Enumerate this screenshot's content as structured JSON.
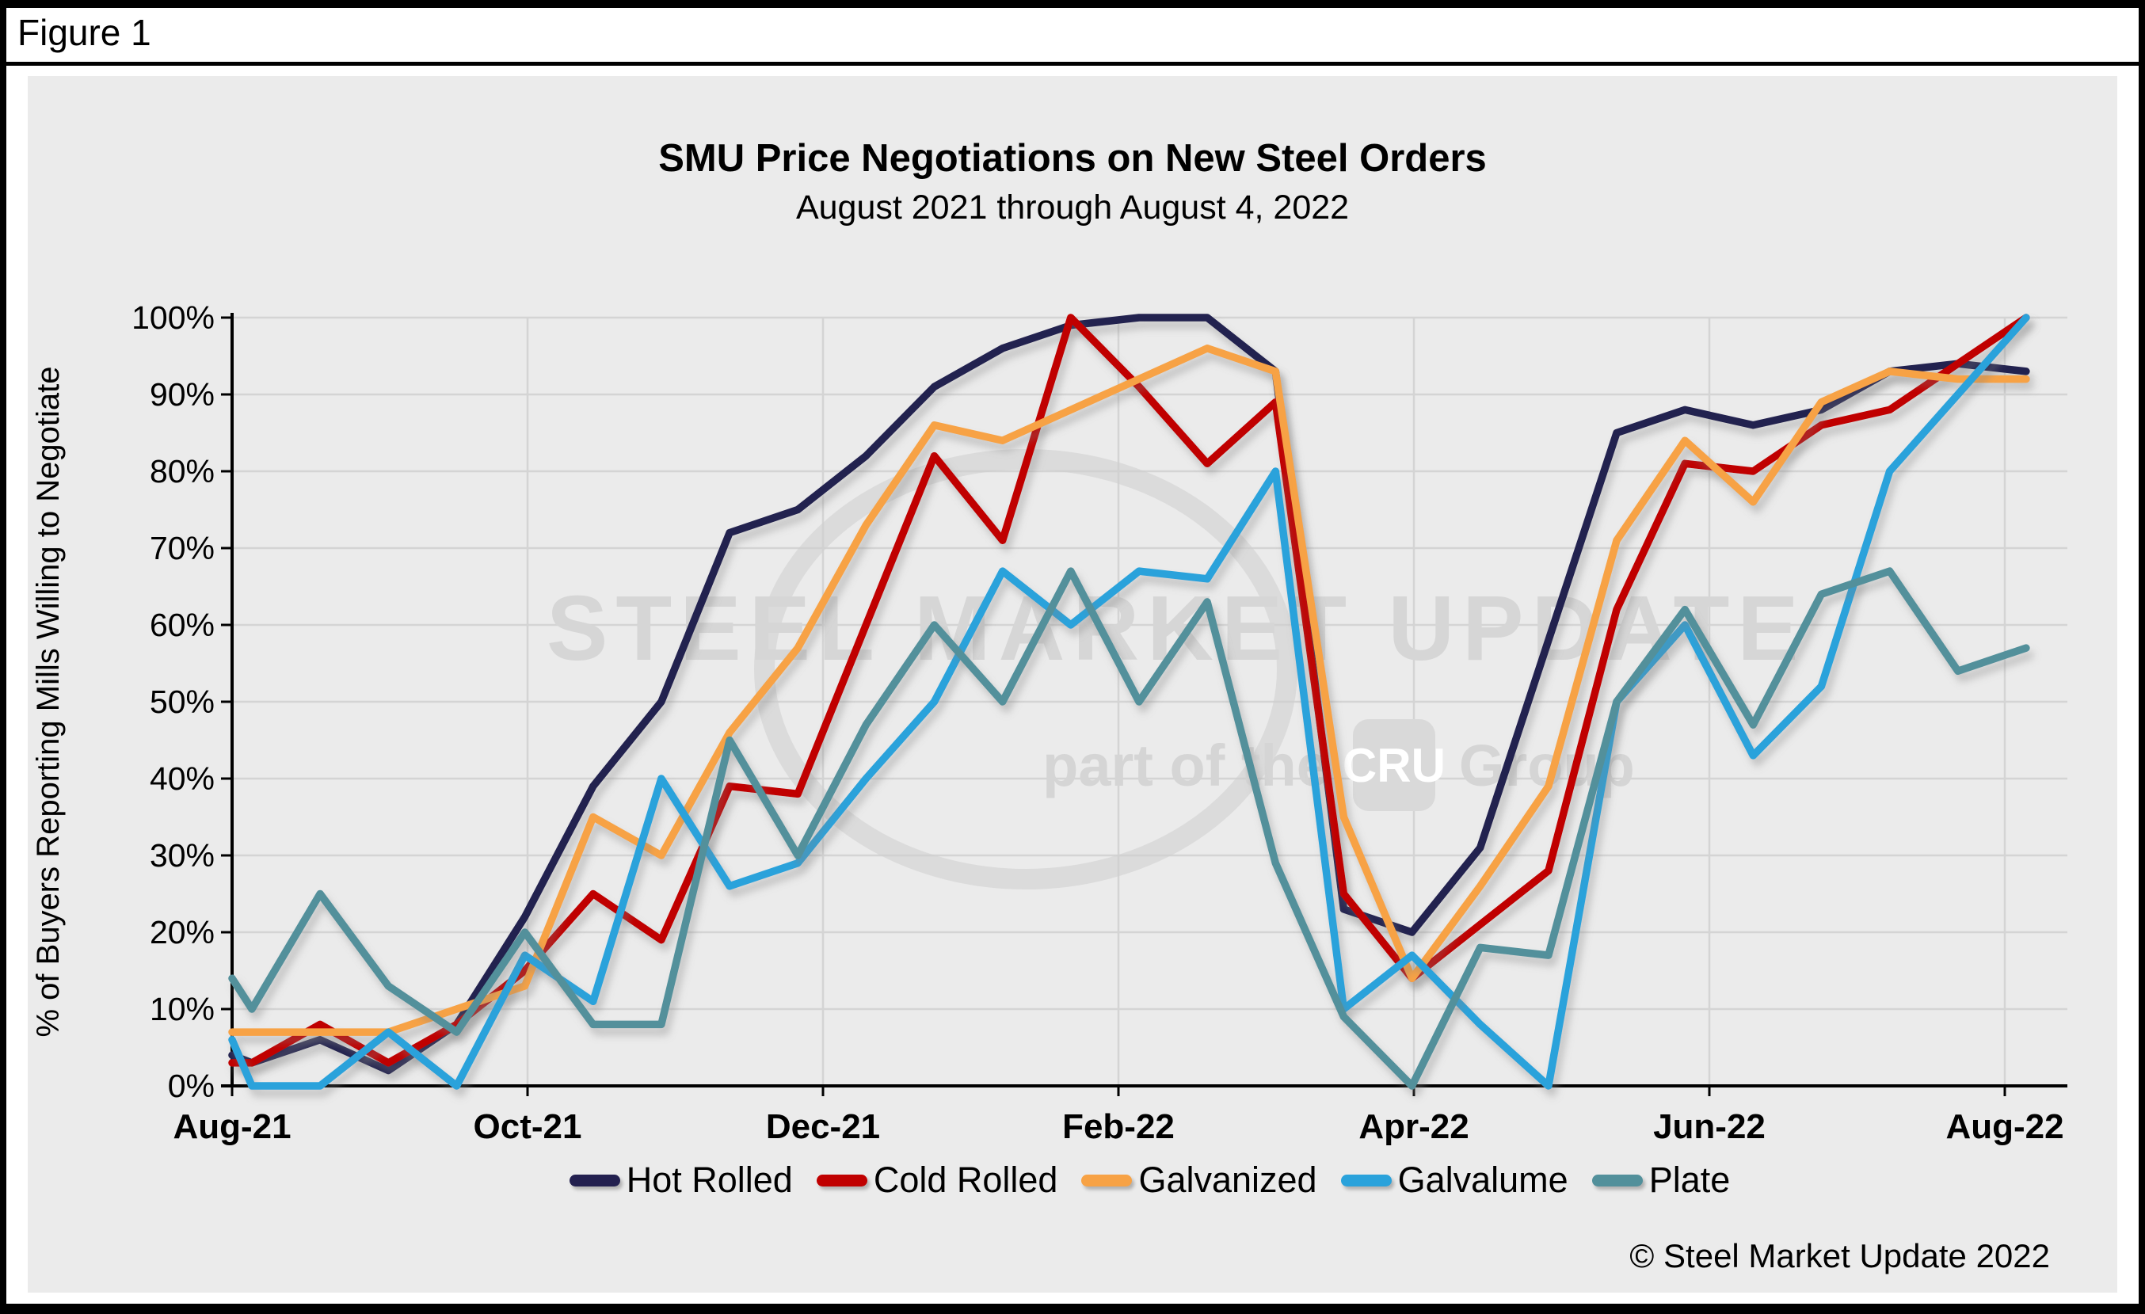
{
  "figure_label": "Figure 1",
  "title": "SMU Price Negotiations on New Steel Orders",
  "subtitle": "August 2021 through August 4, 2022",
  "y_axis": {
    "title": "% of Buyers Reporting Mills Willing to Negotiate",
    "tick_labels": [
      "100%",
      "90%",
      "80%",
      "70%",
      "60%",
      "50%",
      "40%",
      "30%",
      "20%",
      "10%",
      "0%"
    ]
  },
  "x_axis": {
    "tick_labels": [
      "Aug-21",
      "Oct-21",
      "Dec-21",
      "Feb-22",
      "Apr-22",
      "Jun-22",
      "Aug-22"
    ]
  },
  "watermark": {
    "line1": "STEEL MARKET UPDATE",
    "line2_prefix": "part of the",
    "line2_logo": "CRU",
    "line2_suffix": "Group"
  },
  "footer": "© Steel Market Update 2022",
  "chart_data": {
    "type": "line",
    "title": "SMU Price Negotiations on New Steel Orders",
    "subtitle": "August 2021 through August 4, 2022",
    "ylabel": "% of Buyers Reporting Mills Willing to Negotiate",
    "ylim": [
      0,
      100
    ],
    "y_unit": "%",
    "grid": "on",
    "legend_position": "bottom",
    "x_tick_labels": [
      "Aug-21",
      "Oct-21",
      "Dec-21",
      "Feb-22",
      "Apr-22",
      "Jun-22",
      "Aug-22"
    ],
    "points_note": "28 biweekly survey points from early Aug 2021 through Aug 4, 2022; values estimated from gridlines",
    "series": [
      {
        "name": "Hot Rolled",
        "color": "#23204F",
        "values": [
          4,
          3,
          6,
          2,
          8,
          22,
          39,
          50,
          72,
          75,
          82,
          91,
          96,
          99,
          100,
          100,
          93,
          23,
          20,
          31,
          58,
          85,
          88,
          86,
          88,
          93,
          94,
          93
        ]
      },
      {
        "name": "Cold Rolled",
        "color": "#C00000",
        "values": [
          3,
          3,
          8,
          3,
          8,
          15,
          25,
          19,
          39,
          38,
          60,
          82,
          71,
          100,
          91,
          81,
          89,
          25,
          14,
          21,
          28,
          62,
          81,
          80,
          86,
          88,
          94,
          100
        ]
      },
      {
        "name": "Galvanized",
        "color": "#F7A245",
        "values": [
          7,
          7,
          7,
          7,
          10,
          13,
          35,
          30,
          46,
          57,
          73,
          86,
          84,
          88,
          92,
          96,
          93,
          35,
          14,
          26,
          39,
          71,
          84,
          76,
          89,
          93,
          92,
          92
        ]
      },
      {
        "name": "Galvalume",
        "color": "#2AA2DB",
        "values": [
          6,
          0,
          0,
          7,
          0,
          17,
          11,
          40,
          26,
          29,
          40,
          50,
          67,
          60,
          67,
          66,
          80,
          10,
          17,
          8,
          0,
          50,
          60,
          43,
          52,
          80,
          90,
          100
        ]
      },
      {
        "name": "Plate",
        "color": "#52909B",
        "values": [
          14,
          10,
          25,
          13,
          7,
          20,
          8,
          8,
          45,
          30,
          47,
          60,
          50,
          67,
          50,
          63,
          29,
          9,
          0,
          18,
          17,
          50,
          62,
          47,
          64,
          67,
          54,
          57
        ]
      }
    ]
  }
}
